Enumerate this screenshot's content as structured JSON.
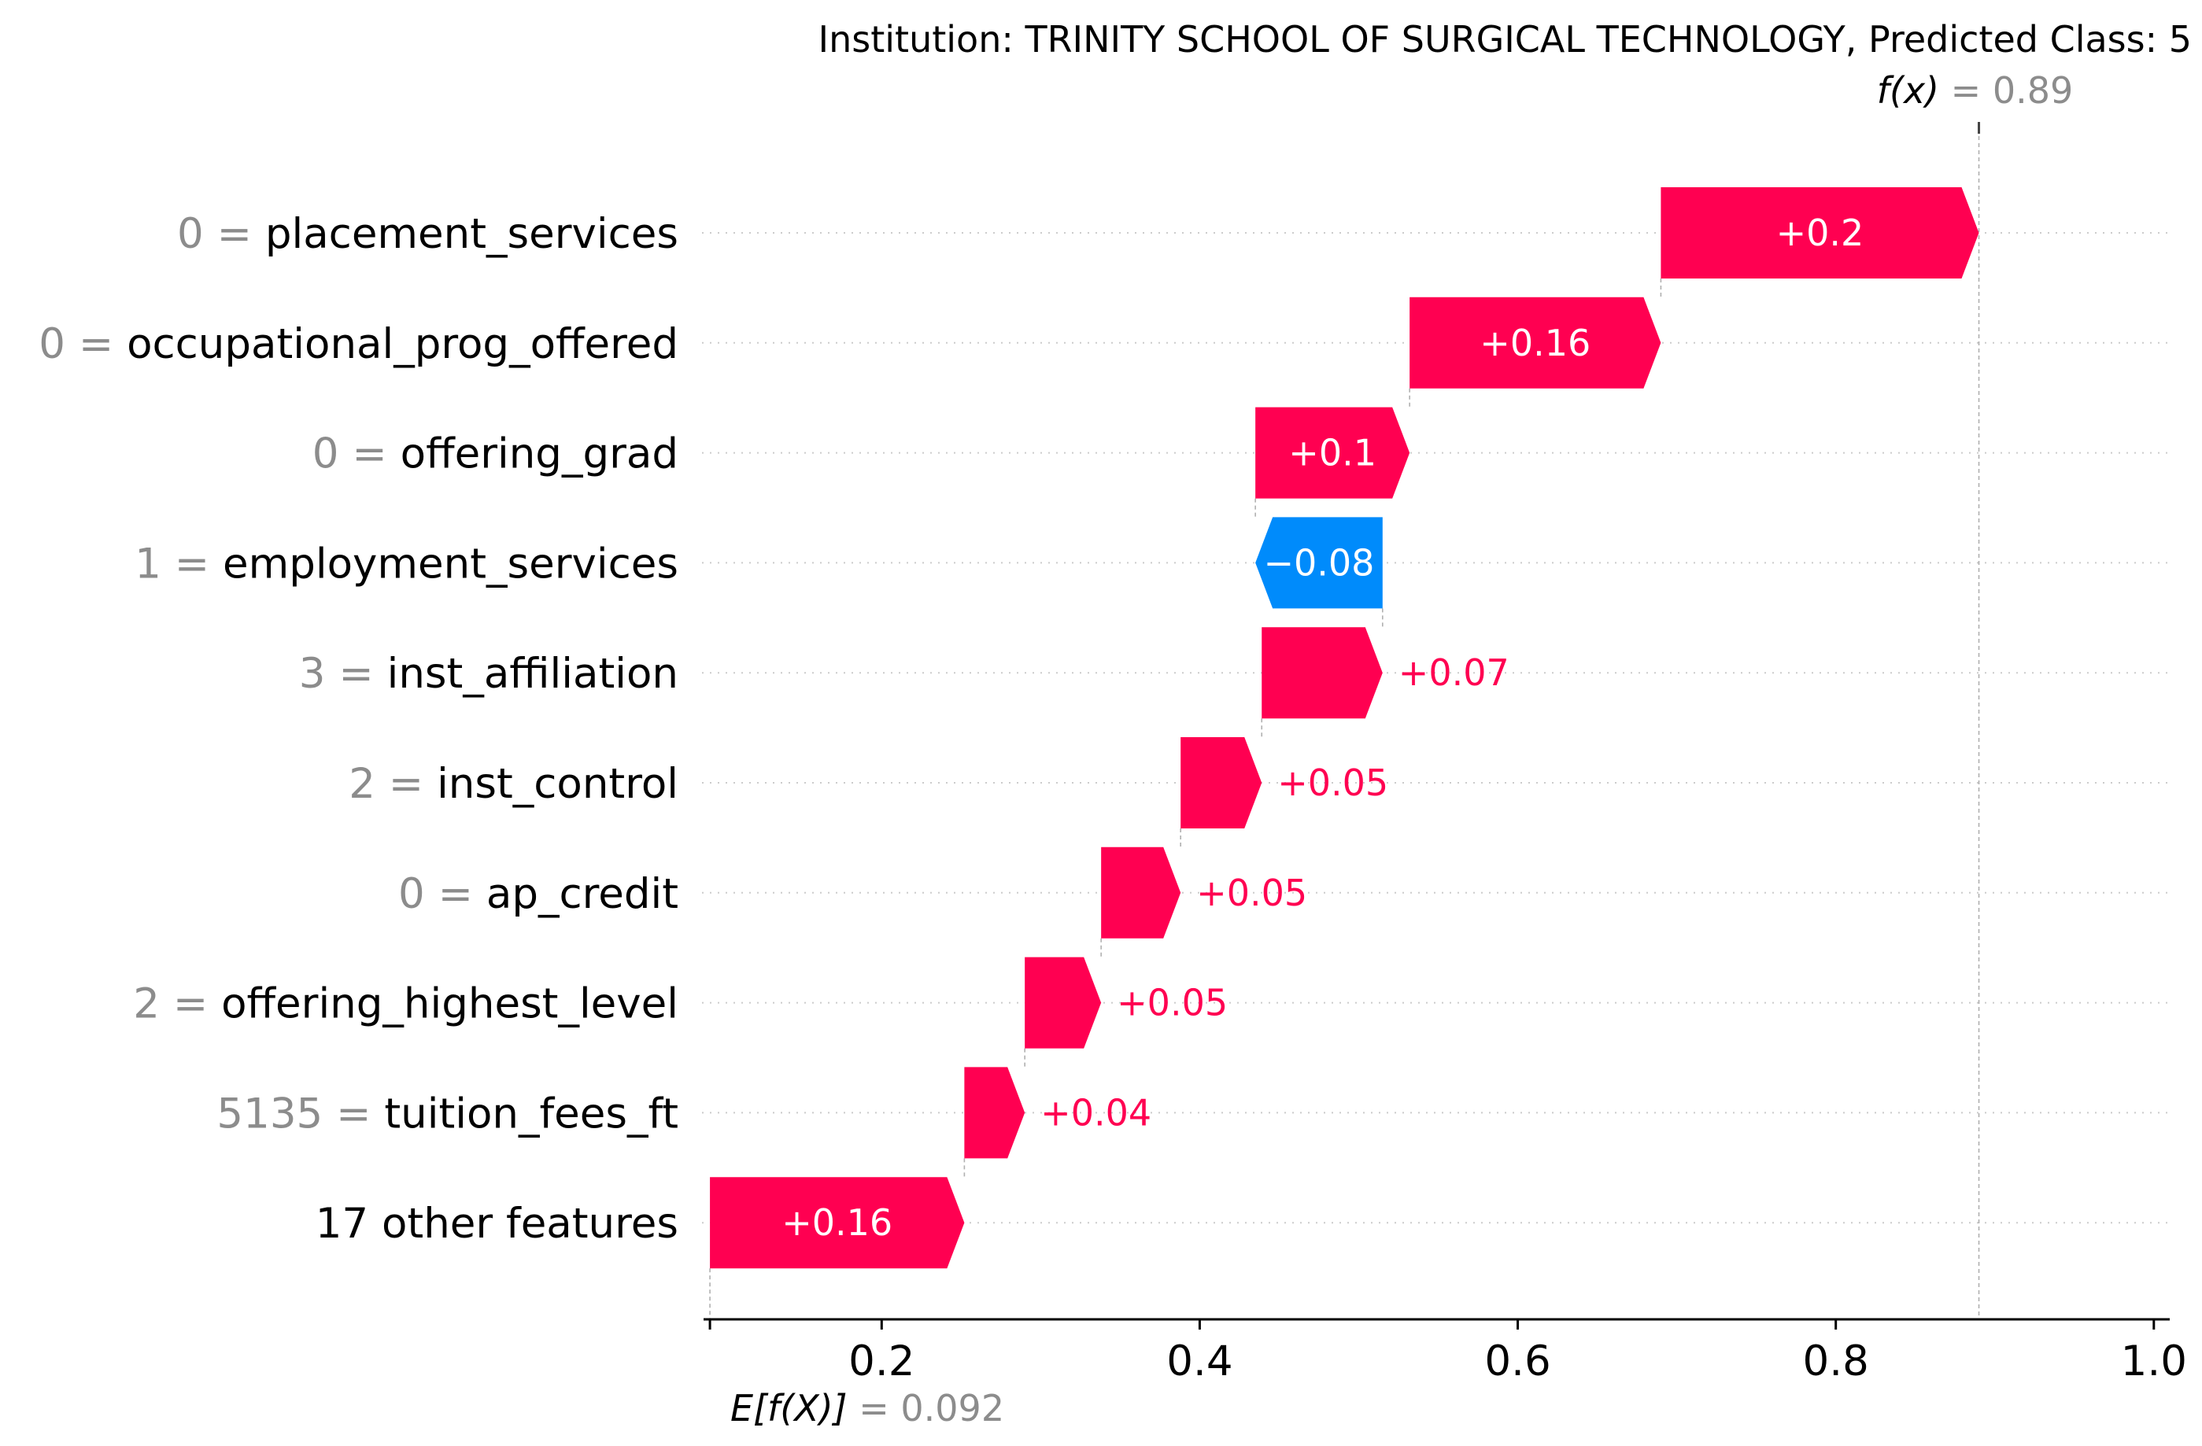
{
  "chart_data": {
    "type": "waterfall",
    "title": "Institution: TRINITY SCHOOL OF SURGICAL TECHNOLOGY, Predicted Class: 5",
    "base_value": 0.092,
    "base_label": "E[f(X)]",
    "base_value_text": "0.092",
    "output_value": 0.89,
    "output_label": "f(x)",
    "output_value_text": "0.89",
    "xlim": [
      0.088,
      1.01
    ],
    "xticks": [
      0.2,
      0.4,
      0.6,
      0.8,
      1.0
    ],
    "xtick_labels": [
      "0.2",
      "0.4",
      "0.6",
      "0.8",
      "1.0"
    ],
    "colors": {
      "positive": "#ff0051",
      "negative": "#008bfb",
      "value_text": "#8c8c8c"
    },
    "features": [
      {
        "value": "0",
        "name": "placement_services",
        "contribution": 0.2,
        "start": 0.69,
        "end": 0.89,
        "label": "+0.2",
        "label_inside": true
      },
      {
        "value": "0",
        "name": "occupational_prog_offered",
        "contribution": 0.16,
        "start": 0.532,
        "end": 0.69,
        "label": "+0.16",
        "label_inside": true
      },
      {
        "value": "0",
        "name": "offering_grad",
        "contribution": 0.1,
        "start": 0.435,
        "end": 0.532,
        "label": "+0.1",
        "label_inside": true
      },
      {
        "value": "1",
        "name": "employment_services",
        "contribution": -0.08,
        "start": 0.515,
        "end": 0.435,
        "label": "−0.08",
        "label_inside": true
      },
      {
        "value": "3",
        "name": "inst_affiliation",
        "contribution": 0.07,
        "start": 0.439,
        "end": 0.515,
        "label": "+0.07",
        "label_inside": false
      },
      {
        "value": "2",
        "name": "inst_control",
        "contribution": 0.05,
        "start": 0.388,
        "end": 0.439,
        "label": "+0.05",
        "label_inside": false
      },
      {
        "value": "0",
        "name": "ap_credit",
        "contribution": 0.05,
        "start": 0.338,
        "end": 0.388,
        "label": "+0.05",
        "label_inside": false
      },
      {
        "value": "2",
        "name": "offering_highest_level",
        "contribution": 0.05,
        "start": 0.29,
        "end": 0.338,
        "label": "+0.05",
        "label_inside": false
      },
      {
        "value": "5135",
        "name": "tuition_fees_ft",
        "contribution": 0.04,
        "start": 0.252,
        "end": 0.29,
        "label": "+0.04",
        "label_inside": false
      },
      {
        "value": "",
        "name": "17 other features",
        "contribution": 0.16,
        "start": 0.092,
        "end": 0.252,
        "label": "+0.16",
        "label_inside": true
      }
    ]
  }
}
